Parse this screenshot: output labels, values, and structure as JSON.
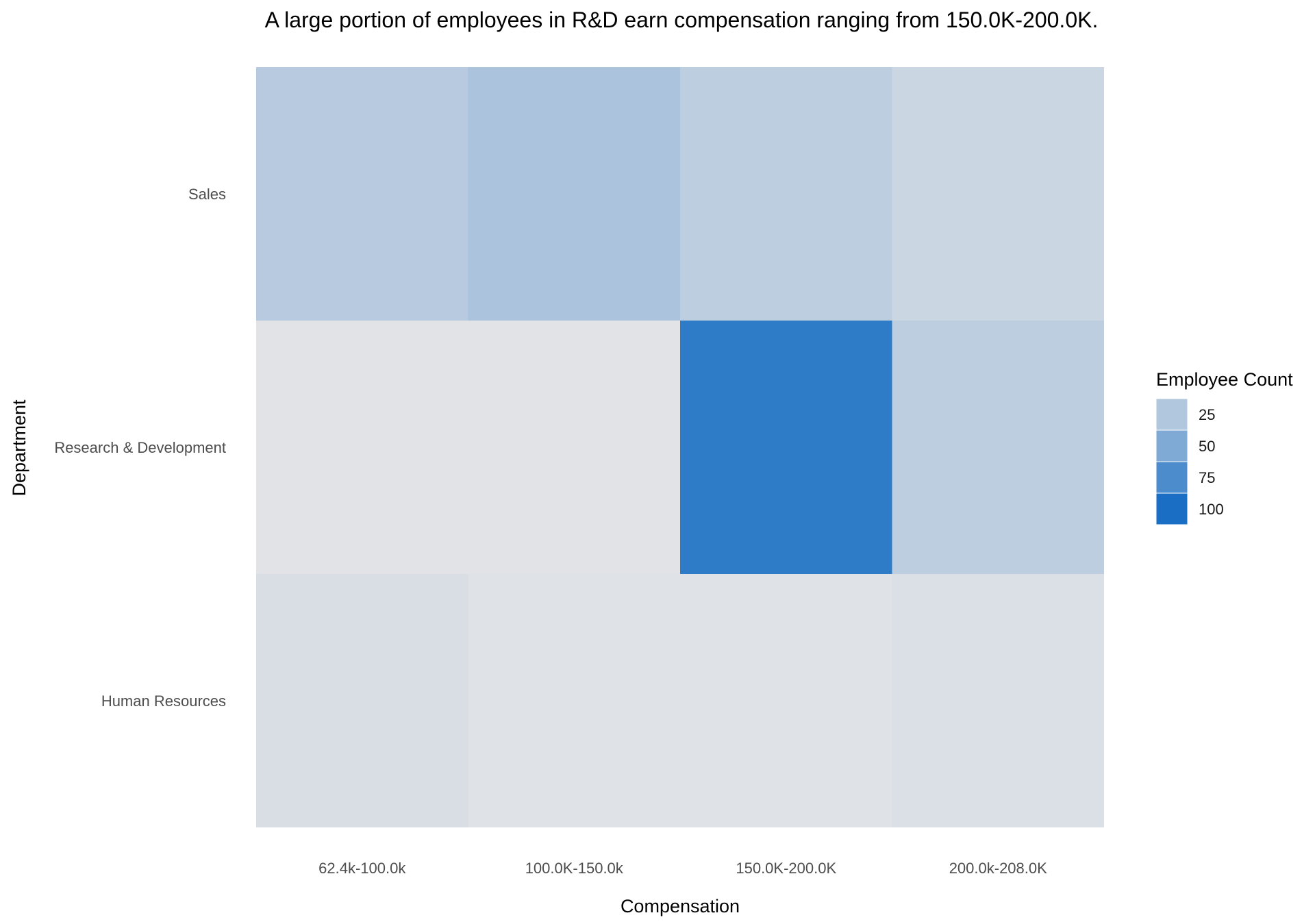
{
  "chart_data": {
    "type": "heatmap",
    "title": "A large portion of employees in R&D earn compensation ranging from 150.0K-200.0K.",
    "xlabel": "Compensation",
    "ylabel": "Department",
    "x_categories": [
      "62.4k-100.0k",
      "100.0K-150.0k",
      "150.0K-200.0K",
      "200.0k-208.0K"
    ],
    "y_categories": [
      "Sales",
      "Research & Development",
      "Human Resources"
    ],
    "values": [
      [
        22,
        28,
        19,
        12
      ],
      [
        1,
        1,
        90,
        19
      ],
      [
        5,
        2,
        2,
        4
      ]
    ],
    "legend": {
      "title": "Employee Count",
      "ticks": [
        25,
        50,
        75,
        100
      ]
    },
    "color_scale": {
      "low": "#e3e4e7",
      "high": "#1a6fc4",
      "domain": [
        0,
        100
      ]
    },
    "grid": false
  }
}
